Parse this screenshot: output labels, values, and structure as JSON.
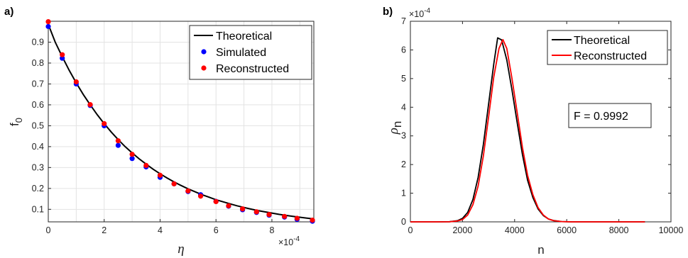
{
  "chart_data": [
    {
      "type": "line",
      "panel_label": "a)",
      "xlabel": "η",
      "ylabel": "f",
      "ylabel_sub": "0",
      "x_multiplier": "×10",
      "x_multiplier_exp": "-4",
      "xlim": [
        0,
        9.5
      ],
      "ylim": [
        0.04,
        1.0
      ],
      "xticks": [
        0,
        2,
        4,
        6,
        8
      ],
      "yticks": [
        0.1,
        0.2,
        0.3,
        0.4,
        0.5,
        0.6,
        0.7,
        0.8,
        0.9
      ],
      "grid": true,
      "legend_position": "top-right",
      "series": [
        {
          "name": "Theoretical",
          "kind": "line",
          "color": "#000000",
          "x": [
            0,
            0.25,
            0.5,
            0.75,
            1,
            1.25,
            1.5,
            1.75,
            2,
            2.25,
            2.5,
            2.75,
            3,
            3.25,
            3.5,
            3.75,
            4,
            4.25,
            4.5,
            4.75,
            5,
            5.25,
            5.5,
            5.75,
            6,
            6.25,
            6.5,
            6.75,
            7,
            7.25,
            7.5,
            7.75,
            8,
            8.25,
            8.5,
            8.75,
            9,
            9.25,
            9.5
          ],
          "y": [
            0.985,
            0.9,
            0.83,
            0.765,
            0.705,
            0.65,
            0.6,
            0.553,
            0.51,
            0.47,
            0.434,
            0.4,
            0.37,
            0.342,
            0.316,
            0.292,
            0.27,
            0.25,
            0.231,
            0.214,
            0.198,
            0.184,
            0.17,
            0.158,
            0.146,
            0.136,
            0.126,
            0.117,
            0.109,
            0.101,
            0.094,
            0.088,
            0.082,
            0.076,
            0.071,
            0.066,
            0.062,
            0.058,
            0.054
          ]
        },
        {
          "name": "Simulated",
          "kind": "scatter",
          "color": "#0000ff",
          "x": [
            0,
            0.5,
            1,
            1.5,
            2,
            2.5,
            3,
            3.5,
            4,
            4.5,
            5,
            5.45,
            6,
            6.45,
            6.95,
            7.45,
            7.9,
            8.45,
            8.9,
            9.45
          ],
          "y": [
            0.975,
            0.823,
            0.7,
            0.597,
            0.5,
            0.406,
            0.343,
            0.303,
            0.253,
            0.222,
            0.185,
            0.17,
            0.138,
            0.115,
            0.098,
            0.085,
            0.072,
            0.063,
            0.052,
            0.043
          ]
        },
        {
          "name": "Reconstructed",
          "kind": "scatter",
          "color": "#ff0000",
          "x": [
            0,
            0.5,
            1,
            1.5,
            2,
            2.5,
            3,
            3.5,
            4,
            4.5,
            5,
            5.45,
            6,
            6.45,
            6.95,
            7.45,
            7.9,
            8.45,
            8.9,
            9.45
          ],
          "y": [
            0.998,
            0.84,
            0.71,
            0.601,
            0.51,
            0.428,
            0.363,
            0.31,
            0.263,
            0.222,
            0.188,
            0.163,
            0.137,
            0.117,
            0.102,
            0.088,
            0.075,
            0.066,
            0.057,
            0.048
          ]
        }
      ]
    },
    {
      "type": "line",
      "panel_label": "b)",
      "xlabel": "n",
      "ylabel": "ρ",
      "ylabel_sub": "n",
      "y_multiplier": "×10",
      "y_multiplier_exp": "-4",
      "xlim": [
        0,
        10000
      ],
      "ylim": [
        0,
        7
      ],
      "xticks": [
        0,
        2000,
        4000,
        6000,
        8000,
        10000
      ],
      "yticks": [
        0,
        1,
        2,
        3,
        4,
        5,
        6,
        7
      ],
      "grid": false,
      "legend_position": "top-right",
      "annotation": "F = 0.9992",
      "series": [
        {
          "name": "Theoretical",
          "kind": "line",
          "color": "#000000",
          "x": [
            0,
            1000,
            1500,
            1800,
            2000,
            2200,
            2400,
            2600,
            2800,
            3000,
            3200,
            3350,
            3500,
            3700,
            3900,
            4100,
            4300,
            4500,
            4700,
            4900,
            5100,
            5300,
            5500,
            5800,
            6200,
            7000,
            9000
          ],
          "y": [
            0,
            0,
            0.005,
            0.04,
            0.12,
            0.33,
            0.78,
            1.55,
            2.7,
            4.1,
            5.5,
            6.42,
            6.35,
            5.65,
            4.6,
            3.45,
            2.35,
            1.45,
            0.85,
            0.45,
            0.22,
            0.1,
            0.045,
            0.01,
            0,
            0,
            0
          ]
        },
        {
          "name": "Reconstructed",
          "kind": "line",
          "color": "#ff0000",
          "x": [
            0,
            1000,
            1500,
            1800,
            2000,
            2200,
            2400,
            2600,
            2800,
            3000,
            3200,
            3400,
            3550,
            3700,
            3900,
            4100,
            4300,
            4500,
            4700,
            4900,
            5100,
            5300,
            5500,
            5800,
            6200,
            7000,
            9000
          ],
          "y": [
            0,
            0,
            0.003,
            0.03,
            0.08,
            0.24,
            0.6,
            1.25,
            2.3,
            3.65,
            5.05,
            6.05,
            6.36,
            6.05,
            5.0,
            3.8,
            2.6,
            1.62,
            0.95,
            0.5,
            0.24,
            0.1,
            0.04,
            0.01,
            0,
            0,
            0
          ]
        }
      ]
    }
  ]
}
